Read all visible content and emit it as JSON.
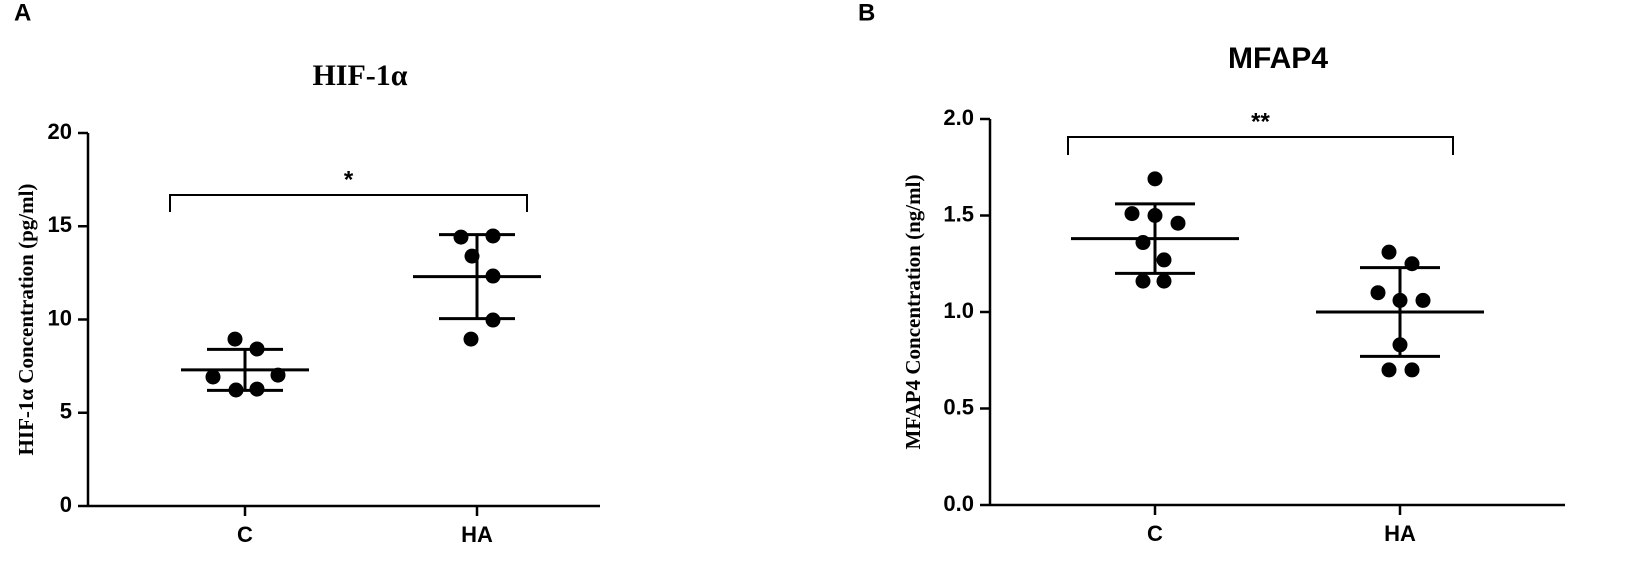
{
  "chart_data": [
    {
      "type": "dotplot",
      "panel": "A",
      "title": "HIF-1α",
      "ylabel": "HIF-1α Concentration (pg/ml)",
      "categories": [
        "C",
        "HA"
      ],
      "points": [
        [
          8.95,
          8.42,
          6.92,
          7.02,
          6.22,
          6.27
        ],
        [
          14.42,
          14.48,
          13.4,
          12.33,
          9.97,
          8.95
        ]
      ],
      "means": [
        7.3,
        12.3
      ],
      "sd": [
        1.1,
        2.25
      ],
      "ylim": [
        0,
        20
      ],
      "yticks": [
        0,
        5,
        10,
        15,
        20
      ],
      "significance": "*",
      "color": "#000000"
    },
    {
      "type": "dotplot",
      "panel": "B",
      "title": "MFAP4",
      "ylabel": "MFAP4 Concentration (ng/ml)",
      "categories": [
        "C",
        "HA"
      ],
      "points": [
        [
          1.69,
          1.51,
          1.5,
          1.46,
          1.36,
          1.27,
          1.16,
          1.16
        ],
        [
          1.31,
          1.25,
          1.1,
          1.06,
          1.06,
          0.83,
          0.7,
          0.7
        ]
      ],
      "means": [
        1.38,
        1.0
      ],
      "sd": [
        0.18,
        0.23
      ],
      "ylim": [
        0,
        2
      ],
      "yticks": [
        {
          "value": 0,
          "label": "0.0"
        },
        0.5,
        {
          "value": 1,
          "label": "1.0"
        },
        1.5,
        {
          "value": 2,
          "label": "2.0"
        }
      ],
      "significance": "**",
      "color": "#000000"
    }
  ]
}
